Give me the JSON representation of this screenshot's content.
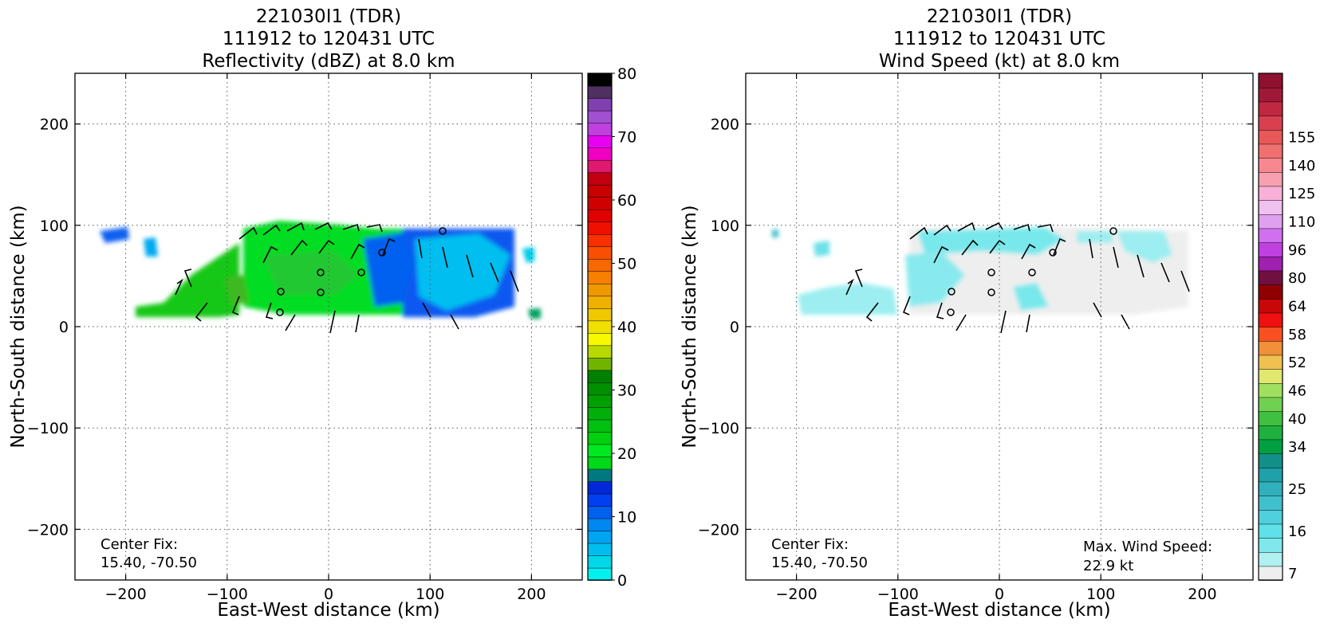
{
  "chart_data": [
    {
      "type": "heatmap",
      "title_lines": [
        "221030I1 (TDR)",
        "111912 to 120431 UTC",
        "Reflectivity (dBZ) at 8.0 km"
      ],
      "xlabel": "East-West distance (km)",
      "ylabel": "North-South distance (km)",
      "xlim": [
        -250,
        250
      ],
      "ylim": [
        -250,
        250
      ],
      "xticks": [
        -200,
        -100,
        0,
        100,
        200
      ],
      "yticks": [
        -200,
        -100,
        0,
        100,
        200
      ],
      "xtick_labels": [
        "−200",
        "−100",
        "0",
        "100",
        "200"
      ],
      "ytick_labels": [
        "−200",
        "−100",
        "0",
        "100",
        "200"
      ],
      "grid": true,
      "annotation": {
        "text_lines": [
          "Center Fix:",
          "15.40, -70.50"
        ],
        "position": "bottom-left"
      },
      "colorbar": {
        "ticks": [
          0,
          10,
          20,
          30,
          40,
          50,
          60,
          70,
          80
        ],
        "tick_labels": [
          "0",
          "10",
          "20",
          "30",
          "40",
          "50",
          "60",
          "70",
          "80"
        ],
        "colors": [
          "#00f0f0",
          "#00d8e8",
          "#00bef0",
          "#00a4f0",
          "#0088f0",
          "#0060f0",
          "#0040f0",
          "#0028d8",
          "#007880",
          "#00d818",
          "#00e820",
          "#00d010",
          "#00c010",
          "#00b008",
          "#00a000",
          "#009000",
          "#008000",
          "#70b400",
          "#b8d800",
          "#f8f800",
          "#f0e000",
          "#f0c800",
          "#f0b000",
          "#f09800",
          "#f88000",
          "#f86800",
          "#f85000",
          "#f83000",
          "#f01000",
          "#e00000",
          "#d00000",
          "#c80000",
          "#c00010",
          "#e01870",
          "#f000c0",
          "#e800f0",
          "#c040e0",
          "#a050d0",
          "#8040b0",
          "#503060",
          "#000000"
        ]
      }
    },
    {
      "type": "heatmap",
      "title_lines": [
        "221030I1 (TDR)",
        "111912 to 120431 UTC",
        "Wind Speed (kt) at 8.0 km"
      ],
      "xlabel": "East-West distance (km)",
      "ylabel": "North-South distance (km)",
      "xlim": [
        -250,
        250
      ],
      "ylim": [
        -250,
        250
      ],
      "xticks": [
        -200,
        -100,
        0,
        100,
        200
      ],
      "yticks": [
        -200,
        -100,
        0,
        100,
        200
      ],
      "xtick_labels": [
        "−200",
        "−100",
        "0",
        "100",
        "200"
      ],
      "ytick_labels": [
        "−200",
        "−100",
        "0",
        "100",
        "200"
      ],
      "grid": true,
      "annotation": {
        "text_lines": [
          "Center Fix:",
          "15.40, -70.50"
        ],
        "position": "bottom-left"
      },
      "max_wind": {
        "text_lines": [
          "Max. Wind Speed:",
          "22.9 kt"
        ],
        "position": "bottom-right"
      },
      "colorbar": {
        "tick_labels": [
          "7",
          "16",
          "25",
          "34",
          "40",
          "46",
          "52",
          "58",
          "64",
          "80",
          "96",
          "110",
          "125",
          "140",
          "155"
        ],
        "tick_indices": [
          0,
          3,
          6,
          9,
          11,
          13,
          15,
          17,
          19,
          21,
          23,
          25,
          27,
          29,
          31
        ],
        "colors": [
          "#eeeeee",
          "#b0f0f0",
          "#80e8ec",
          "#60e0e8",
          "#50d0dc",
          "#40c0cc",
          "#30b0bc",
          "#20a0a8",
          "#109088",
          "#00a040",
          "#20b040",
          "#40c040",
          "#70d050",
          "#a0e060",
          "#e0e870",
          "#f0c050",
          "#f09038",
          "#f85020",
          "#f01010",
          "#c80808",
          "#900000",
          "#701040",
          "#a020b0",
          "#c040e0",
          "#d070f0",
          "#e0a0f0",
          "#f0c0f0",
          "#f8b0d8",
          "#f8a0b0",
          "#f88890",
          "#f07070",
          "#e85858",
          "#d84050",
          "#c02840",
          "#a01838",
          "#901030"
        ]
      },
      "wind_data": {
        "max_speed_kt": 22.9
      }
    }
  ]
}
